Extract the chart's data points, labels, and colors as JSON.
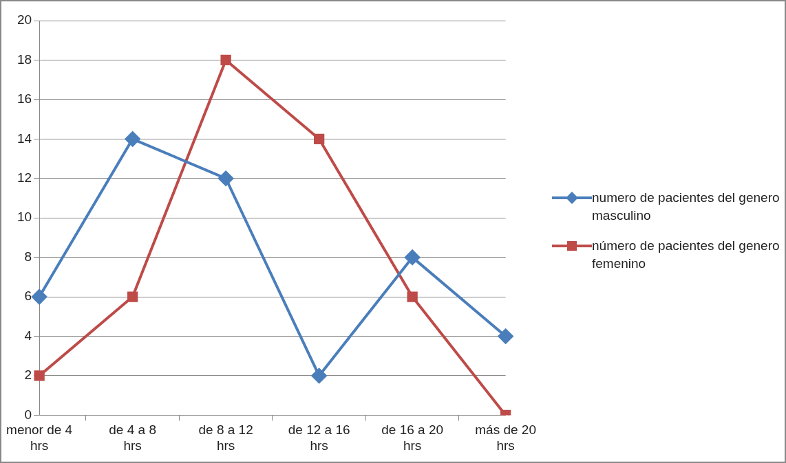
{
  "chart_data": {
    "type": "line",
    "categories": [
      "menor de 4 hrs",
      "de 4 a 8 hrs",
      "de 8 a 12 hrs",
      "de 12 a 16 hrs",
      "de 16 a 20 hrs",
      "más de 20 hrs"
    ],
    "series": [
      {
        "name": "numero de pacientes del genero masculino",
        "color": "#4a7ebb",
        "marker": "diamond",
        "values": [
          6,
          14,
          12,
          2,
          8,
          4
        ]
      },
      {
        "name": "número de pacientes del genero femenino",
        "color": "#be4b48",
        "marker": "square",
        "values": [
          2,
          6,
          18,
          14,
          6,
          0
        ]
      }
    ],
    "ylim": [
      0,
      20
    ],
    "yticks": [
      0,
      2,
      4,
      6,
      8,
      10,
      12,
      14,
      16,
      18,
      20
    ],
    "grid": "y",
    "legend": "right",
    "line_style": "solid"
  }
}
